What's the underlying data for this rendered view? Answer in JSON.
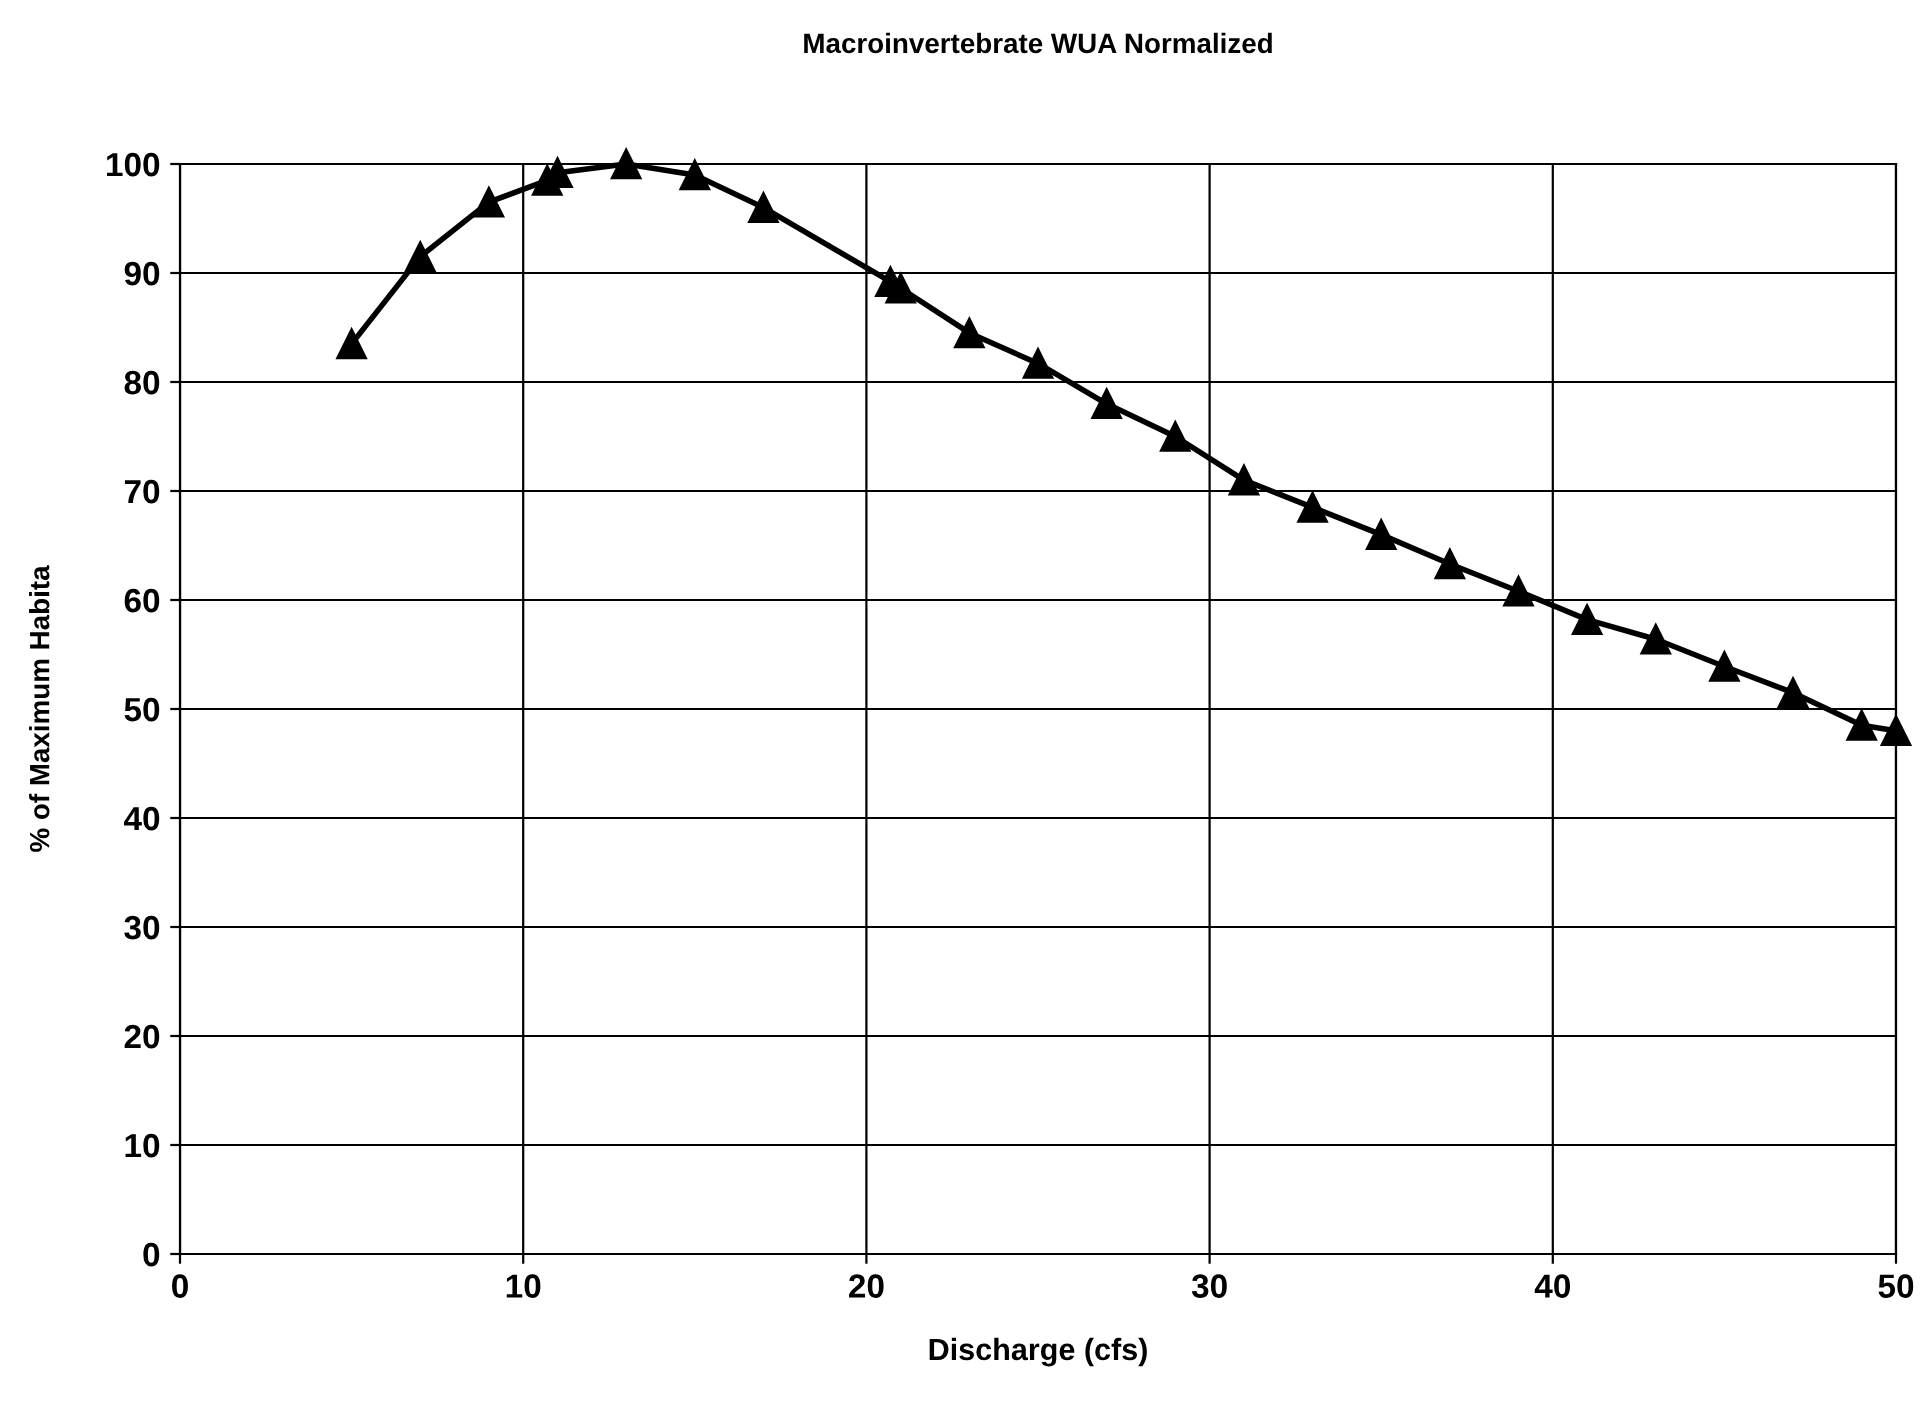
{
  "chart_data": {
    "type": "line",
    "title": "Macroinvertebrate WUA Normalized",
    "xlabel": "Discharge (cfs)",
    "ylabel": "% of Maximum Habita",
    "x": [
      5,
      7,
      9,
      10.7,
      11,
      13,
      15,
      17,
      20.7,
      21,
      23,
      25,
      27,
      29,
      31,
      33,
      35,
      37,
      39,
      41,
      43,
      45,
      47,
      49,
      50
    ],
    "series": [
      {
        "color": "#000000",
        "values": [
          83.5,
          91.5,
          96.5,
          98.5,
          99.2,
          100,
          99,
          96,
          89.2,
          88.6,
          84.5,
          81.7,
          78,
          75,
          71,
          68.5,
          66,
          63.3,
          60.8,
          58.2,
          56.4,
          53.9,
          51.5,
          48.5,
          48
        ]
      }
    ],
    "xlim": [
      0,
      50
    ],
    "xticks": [
      0,
      10,
      20,
      30,
      40,
      50
    ],
    "ylim": [
      0,
      100
    ],
    "yticks": [
      0,
      10,
      20,
      30,
      40,
      50,
      60,
      70,
      80,
      90,
      100
    ],
    "grid": true,
    "marker": "triangle",
    "line_style": "solid"
  }
}
